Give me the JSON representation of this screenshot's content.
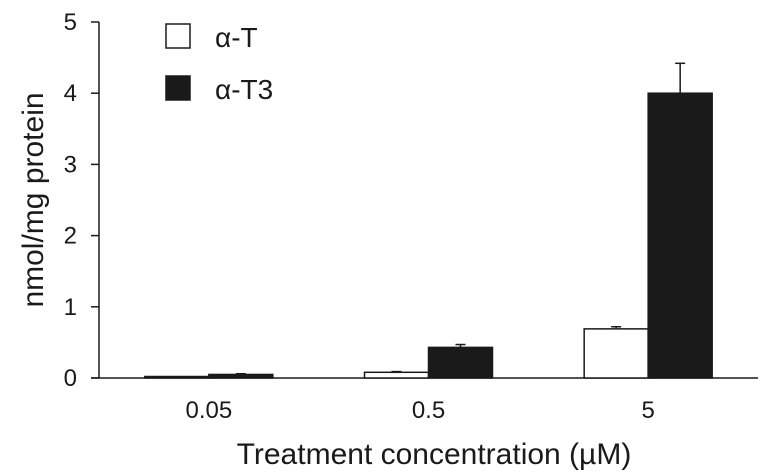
{
  "chart_data": {
    "type": "bar",
    "xlabel": "Treatment concentration (µM)",
    "ylabel": "nmol/mg protein",
    "categories": [
      "0.05",
      "0.5",
      "5"
    ],
    "ylim": [
      0,
      5
    ],
    "yticks": [
      "0",
      "1",
      "2",
      "3",
      "4",
      "5"
    ],
    "grid": false,
    "legend_position": "top-left",
    "series": [
      {
        "name": "α-T",
        "fill": "#ffffff",
        "stroke": "#1a1a1a",
        "values": [
          0.01,
          0.08,
          0.69
        ],
        "errors": [
          0.005,
          0.01,
          0.03
        ]
      },
      {
        "name": "α-T3",
        "fill": "#1a1a1a",
        "stroke": "#1a1a1a",
        "values": [
          0.05,
          0.43,
          4.0
        ],
        "errors": [
          0.01,
          0.04,
          0.42
        ]
      }
    ]
  }
}
